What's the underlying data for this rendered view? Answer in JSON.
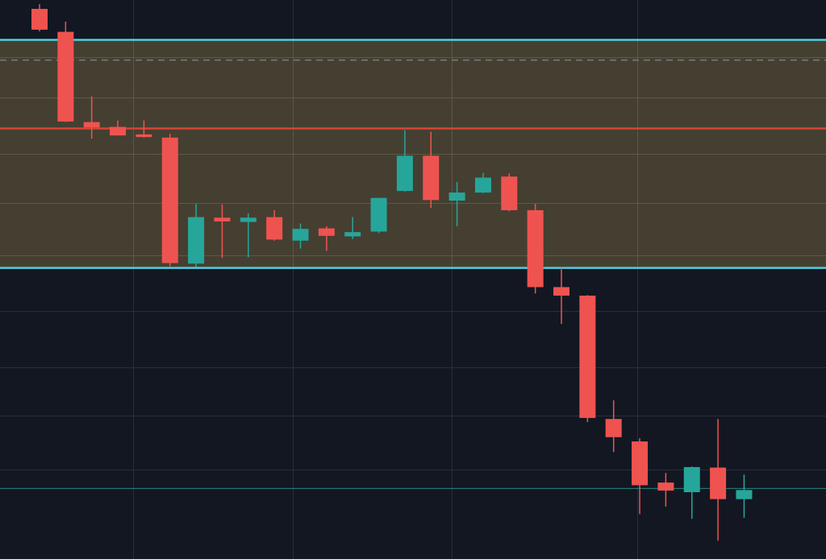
{
  "colors": {
    "background": "#131722",
    "grid": "#2a2e39",
    "up": "#26a69a",
    "down": "#ef5350",
    "zone_fill": "#4a4333",
    "zone_border": "#4dd0e1",
    "resistance_line": "#d94432",
    "dashed_line": "#787b86",
    "price_line": "#26a69a"
  },
  "chart_data": {
    "type": "candlestick",
    "title": "",
    "xlabel": "",
    "ylabel": "",
    "ylim": [
      0,
      100
    ],
    "grid": true,
    "legend": "none",
    "candles": [
      {
        "o": 100.6,
        "h": 101.5,
        "l": 96.4,
        "c": 96.7
      },
      {
        "o": 96.3,
        "h": 98.2,
        "l": 79.4,
        "c": 79.5
      },
      {
        "o": 79.4,
        "h": 84.2,
        "l": 76.3,
        "c": 78.4
      },
      {
        "o": 78.5,
        "h": 79.7,
        "l": 76.9,
        "c": 76.9
      },
      {
        "o": 77.1,
        "h": 79.7,
        "l": 76.5,
        "c": 76.6
      },
      {
        "o": 76.5,
        "h": 77.2,
        "l": 52.4,
        "c": 53.0
      },
      {
        "o": 52.9,
        "h": 64.1,
        "l": 52.3,
        "c": 61.6
      },
      {
        "o": 61.5,
        "h": 64.0,
        "l": 54.0,
        "c": 60.8
      },
      {
        "o": 60.7,
        "h": 62.3,
        "l": 54.1,
        "c": 61.5
      },
      {
        "o": 61.6,
        "h": 62.9,
        "l": 57.2,
        "c": 57.4
      },
      {
        "o": 57.2,
        "h": 60.4,
        "l": 55.7,
        "c": 59.4
      },
      {
        "o": 59.5,
        "h": 59.9,
        "l": 55.3,
        "c": 58.1
      },
      {
        "o": 58.0,
        "h": 61.6,
        "l": 57.5,
        "c": 58.8
      },
      {
        "o": 58.9,
        "h": 65.2,
        "l": 58.6,
        "c": 65.2
      },
      {
        "o": 66.5,
        "h": 77.9,
        "l": 66.4,
        "c": 73.1
      },
      {
        "o": 73.1,
        "h": 77.6,
        "l": 63.3,
        "c": 64.8
      },
      {
        "o": 64.7,
        "h": 68.2,
        "l": 59.9,
        "c": 66.2
      },
      {
        "o": 66.2,
        "h": 69.9,
        "l": 66.1,
        "c": 69.0
      },
      {
        "o": 69.2,
        "h": 69.8,
        "l": 62.7,
        "c": 62.9
      },
      {
        "o": 62.9,
        "h": 64.1,
        "l": 47.3,
        "c": 48.5
      },
      {
        "o": 48.5,
        "h": 52.1,
        "l": 41.6,
        "c": 46.9
      },
      {
        "o": 46.9,
        "h": 47.0,
        "l": 23.2,
        "c": 24.0
      },
      {
        "o": 23.8,
        "h": 27.3,
        "l": 17.6,
        "c": 20.4
      },
      {
        "o": 19.6,
        "h": 20.2,
        "l": 6.0,
        "c": 11.4
      },
      {
        "o": 11.9,
        "h": 13.7,
        "l": 7.4,
        "c": 10.4
      },
      {
        "o": 10.1,
        "h": 14.9,
        "l": 5.1,
        "c": 14.8
      },
      {
        "o": 14.7,
        "h": 23.8,
        "l": 1.0,
        "c": 8.8
      },
      {
        "o": 8.8,
        "h": 13.4,
        "l": 5.3,
        "c": 10.5
      }
    ],
    "zone": {
      "top": 94.8,
      "bottom": 52.1
    },
    "levels": {
      "zone_top": 94.8,
      "zone_bottom": 52.1,
      "resistance": 78.2,
      "dashed": 91.0,
      "current_price": 10.8
    },
    "gridlines_y": [
      91.5,
      84.0,
      73.5,
      64.2,
      54.5,
      44.0,
      33.5,
      24.5,
      14.3
    ],
    "gridlines_x_index": [
      3.6,
      9.7,
      15.8,
      22.9
    ]
  }
}
